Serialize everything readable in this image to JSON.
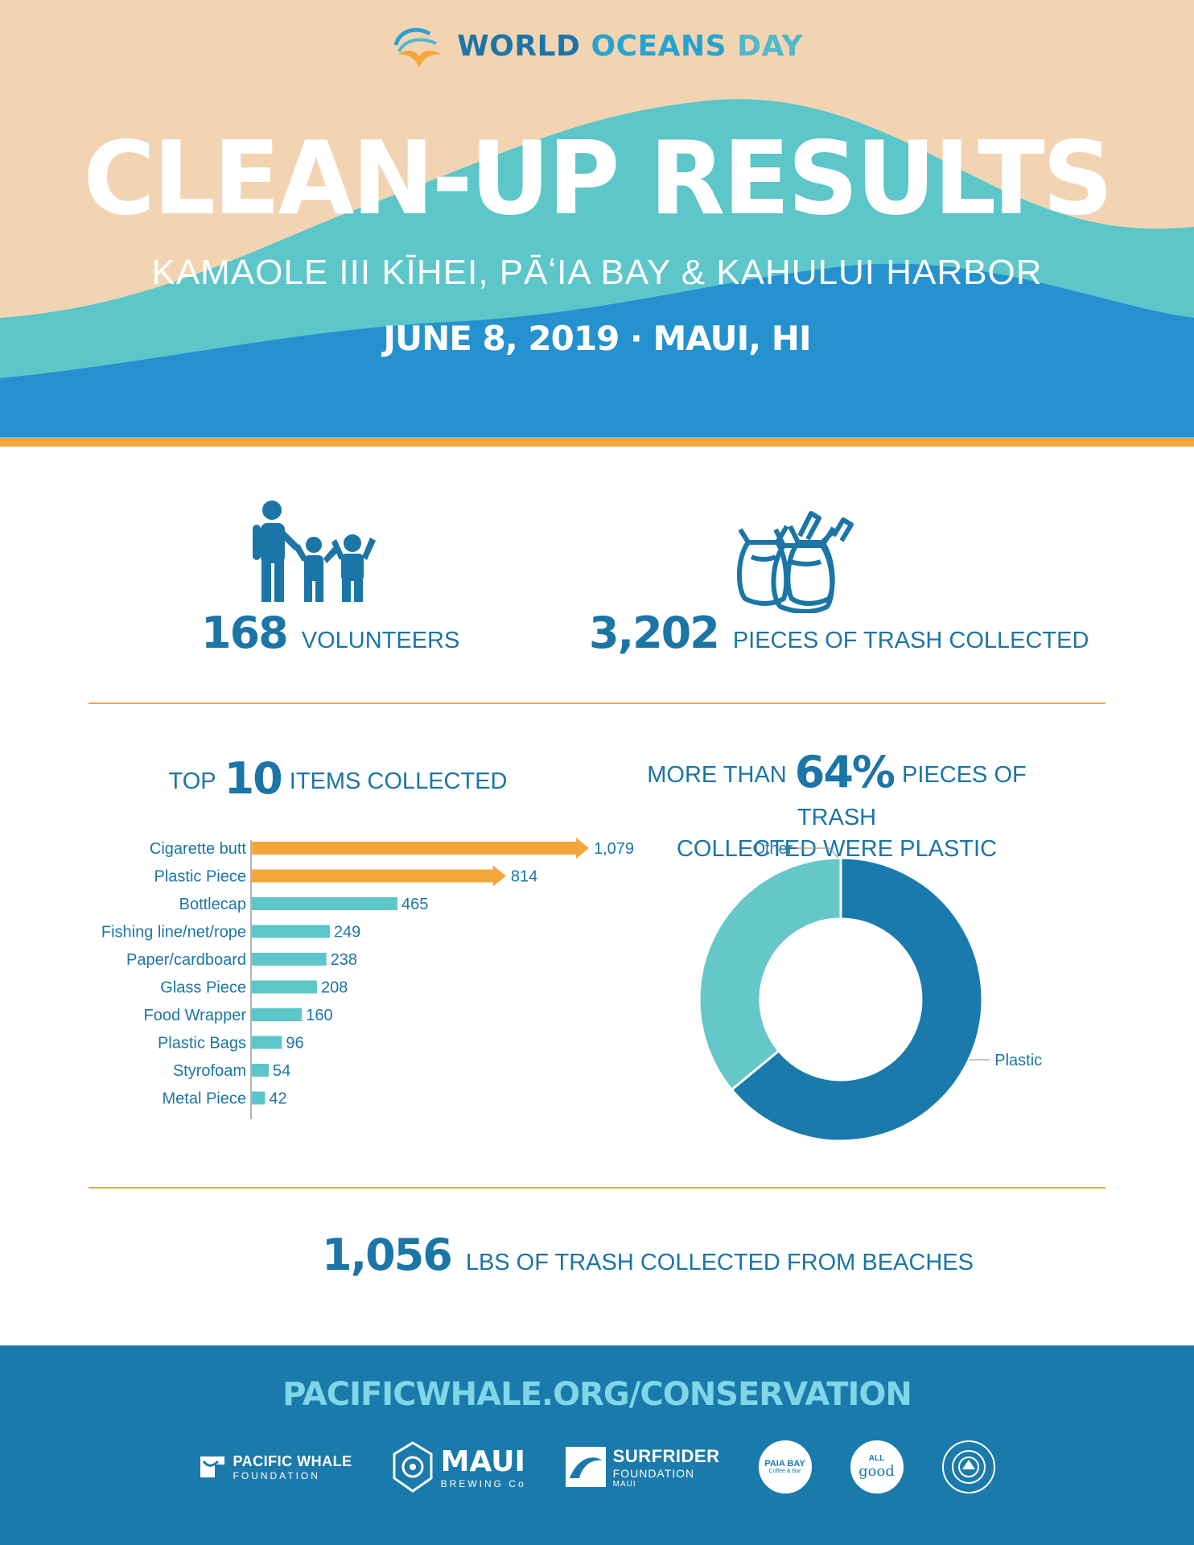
{
  "header": {
    "logo": {
      "part1": "WORLD",
      "part2": "OCEANS",
      "part3": "DAY"
    },
    "title": "CLEAN-UP RESULTS",
    "subtitle": "KAMAOLE III KĪHEI, PĀʻIA BAY & KAHULUI HARBOR",
    "date_line": "JUNE 8, 2019 · MAUI, HI"
  },
  "stats": {
    "volunteers": {
      "value": "168",
      "label": "VOLUNTEERS"
    },
    "trash": {
      "value": "3,202",
      "label": "PIECES OF TRASH COLLECTED"
    },
    "weight": {
      "value": "1,056",
      "label": "LBS OF TRASH COLLECTED FROM BEACHES"
    }
  },
  "top_items": {
    "prefix": "TOP",
    "number": "10",
    "suffix": "ITEMS COLLECTED"
  },
  "plastic": {
    "prefix": "MORE THAN",
    "percent": "64%",
    "suffix": "PIECES OF TRASH",
    "line2": "COLLECTED WERE PLASTIC"
  },
  "chart_data": [
    {
      "type": "bar",
      "orientation": "horizontal",
      "categories": [
        "Cigarette butt",
        "Plastic Piece",
        "Bottlecap",
        "Fishing line/net/rope",
        "Paper/cardboard",
        "Glass Piece",
        "Food Wrapper",
        "Plastic Bags",
        "Styrofoam",
        "Metal Piece"
      ],
      "values": [
        1079,
        814,
        465,
        249,
        238,
        208,
        160,
        96,
        54,
        42
      ],
      "value_labels": [
        "1,079",
        "814",
        "465",
        "249",
        "238",
        "208",
        "160",
        "96",
        "54",
        "42"
      ],
      "highlight_count": 2,
      "colors": {
        "highlight": "#f3a73b",
        "normal": "#5cc6c9"
      },
      "xlim": [
        0,
        1079
      ]
    },
    {
      "type": "pie",
      "style": "donut",
      "labels": [
        "Plastic",
        "Other"
      ],
      "values": [
        64,
        36
      ],
      "colors": [
        "#1a7aab",
        "#66c7c9"
      ]
    }
  ],
  "footer": {
    "url": "PACIFICWHALE.ORG/CONSERVATION",
    "partners": {
      "pwf": {
        "name": "PACIFIC WHALE",
        "sub": "FOUNDATION"
      },
      "maui": {
        "name": "MAUI",
        "sub": "BREWING Co"
      },
      "surfrider": {
        "name": "SURFRIDER",
        "sub": "FOUNDATION",
        "sub2": "MAUI"
      },
      "paia": {
        "name": "PAIA BAY",
        "sub": "Coffee & Bar"
      },
      "allgood": {
        "name": "ALL",
        "sub": "good"
      }
    }
  },
  "colors": {
    "primary": "#1b75a6",
    "accent": "#f3a73b",
    "teal": "#5cc6c9",
    "sand": "#f2d4b3",
    "ocean": "#2591cf"
  }
}
